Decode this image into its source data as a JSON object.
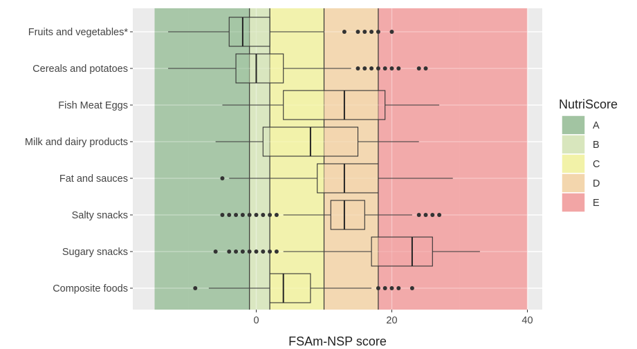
{
  "chart_data": {
    "type": "boxplot",
    "title": "",
    "xlabel": "FSAm-NSP score",
    "ylabel": "",
    "xlim": [
      -17,
      41
    ],
    "x_ticks": [
      0,
      20,
      40
    ],
    "x_tick_labels": [
      "0",
      "20",
      "40"
    ],
    "minor_grid": [
      -10,
      10,
      30
    ],
    "grid": true,
    "legend": {
      "title": "NutriScore",
      "position": "right",
      "entries": [
        {
          "label": "A",
          "color": "#a2c4a2"
        },
        {
          "label": "B",
          "color": "#d8e6bd"
        },
        {
          "label": "C",
          "color": "#f2f2a8"
        },
        {
          "label": "D",
          "color": "#f3d6ad"
        },
        {
          "label": "E",
          "color": "#f2a5a5"
        }
      ]
    },
    "zones": [
      {
        "label": "A",
        "from": -15,
        "to": -1,
        "color": "#a2c4a2"
      },
      {
        "label": "B",
        "from": -1,
        "to": 2,
        "color": "#d8e6bd"
      },
      {
        "label": "C",
        "from": 2,
        "to": 10,
        "color": "#f2f2a8"
      },
      {
        "label": "D",
        "from": 10,
        "to": 18,
        "color": "#f3d6ad"
      },
      {
        "label": "E",
        "from": 18,
        "to": 40,
        "color": "#f2a5a5"
      }
    ],
    "categories": [
      "Fruits and vegetables*",
      "Cereals and potatoes",
      "Fish Meat Eggs",
      "Milk and dairy products",
      "Fat and sauces",
      "Salty snacks",
      "Sugary snacks",
      "Composite foods"
    ],
    "boxes": [
      {
        "category": "Fruits and vegetables*",
        "whisker_low": -13,
        "q1": -4,
        "median": -2,
        "q3": 2,
        "whisker_high": 10,
        "outliers": [
          13,
          15,
          16,
          17,
          18,
          20
        ]
      },
      {
        "category": "Cereals and potatoes",
        "whisker_low": -13,
        "q1": -3,
        "median": 0,
        "q3": 4,
        "whisker_high": 14,
        "outliers": [
          15,
          16,
          17,
          18,
          19,
          20,
          21,
          24,
          25
        ]
      },
      {
        "category": "Fish Meat Eggs",
        "whisker_low": -5,
        "q1": 4,
        "median": 13,
        "q3": 19,
        "whisker_high": 27,
        "outliers": []
      },
      {
        "category": "Milk and dairy products",
        "whisker_low": -6,
        "q1": 1,
        "median": 8,
        "q3": 15,
        "whisker_high": 24,
        "outliers": []
      },
      {
        "category": "Fat and sauces",
        "whisker_low": -4,
        "q1": 9,
        "median": 13,
        "q3": 18,
        "whisker_high": 29,
        "outliers": [
          -5
        ]
      },
      {
        "category": "Salty snacks",
        "whisker_low": 4,
        "q1": 11,
        "median": 13,
        "q3": 16,
        "whisker_high": 23,
        "outliers": [
          -5,
          -4,
          -3,
          -2,
          -1,
          0,
          1,
          2,
          3,
          24,
          25,
          26,
          27
        ]
      },
      {
        "category": "Sugary snacks",
        "whisker_low": 4,
        "q1": 17,
        "median": 23,
        "q3": 26,
        "whisker_high": 33,
        "outliers": [
          -6,
          -4,
          -3,
          -2,
          -1,
          0,
          1,
          2,
          3
        ]
      },
      {
        "category": "Composite foods",
        "whisker_low": -7,
        "q1": 2,
        "median": 4,
        "q3": 8,
        "whisker_high": 17,
        "outliers": [
          -9,
          18,
          19,
          20,
          21,
          23
        ]
      }
    ]
  }
}
